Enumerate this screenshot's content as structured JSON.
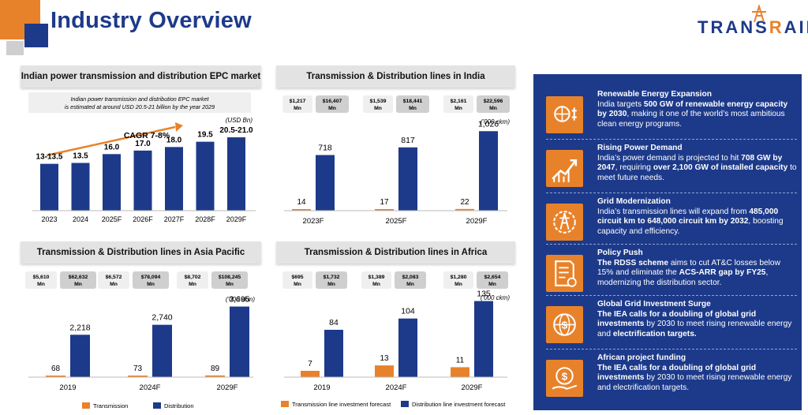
{
  "page": {
    "title": "Industry Overview",
    "logo": "TRANSRAIL"
  },
  "colors": {
    "blue": "#1d3a8a",
    "orange": "#e8822a",
    "gray": "#e3e3e3"
  },
  "epc": {
    "title": "Indian power transmission and distribution EPC market",
    "note_line1": "Indian power transmission and distribution EPC market",
    "note_line2": "is estimated at around USD 20.5-21 billion by the year 2029",
    "unit": "(USD Bn)",
    "cagr": "CAGR 7-8%"
  },
  "india": {
    "title": "Transmission & Distribution lines in India",
    "unit": "('000 ckm)"
  },
  "asia": {
    "title": "Transmission & Distribution lines in Asia Pacific",
    "unit": "('000 ckm)",
    "legend_t": "Transmission",
    "legend_d": "Distribution"
  },
  "africa": {
    "title": "Transmission & Distribution lines in Africa",
    "unit": "('000 ckm)",
    "legend_t": "Transmission line investment forecast",
    "legend_d": "Distribution line investment forecast"
  },
  "chart_data": [
    {
      "type": "bar",
      "title": "Indian power transmission and distribution EPC market",
      "categories": [
        "2023",
        "2024",
        "2025F",
        "2026F",
        "2027F",
        "2028F",
        "2029F"
      ],
      "values": [
        13.25,
        13.5,
        16.0,
        17.0,
        18.0,
        19.5,
        20.75
      ],
      "labels": [
        "13-13.5",
        "13.5",
        "16.0",
        "17.0",
        "18.0",
        "19.5",
        "20.5-21.0"
      ],
      "ylabel": "(USD Bn)",
      "annotation": "CAGR 7-8%",
      "ylim": [
        0,
        24
      ]
    },
    {
      "type": "bar",
      "title": "Transmission & Distribution lines in India",
      "categories": [
        "2023F",
        "2025F",
        "2029F"
      ],
      "series": [
        {
          "values": [
            14,
            17,
            22
          ]
        },
        {
          "values": [
            718,
            817,
            1026
          ]
        }
      ],
      "labels_t": [
        "14",
        "17",
        "22"
      ],
      "labels_d": [
        "718",
        "817",
        "1,026"
      ],
      "badges": [
        [
          "$1,217 Mn",
          "$16,407 Mn"
        ],
        [
          "$1,539 Mn",
          "$18,441 Mn"
        ],
        [
          "$2,161 Mn",
          "$22,596 Mn"
        ]
      ],
      "ylim": [
        0,
        1100
      ]
    },
    {
      "type": "bar",
      "title": "Transmission & Distribution lines in Asia Pacific",
      "categories": [
        "2019",
        "2024F",
        "2029F"
      ],
      "series": [
        {
          "name": "Transmission",
          "values": [
            68,
            73,
            89
          ]
        },
        {
          "name": "Distribution",
          "values": [
            2218,
            2740,
            3695
          ]
        }
      ],
      "labels_t": [
        "68",
        "73",
        "89"
      ],
      "labels_d": [
        "2,218",
        "2,740",
        "3,695"
      ],
      "badges": [
        [
          "$5,610 Mn",
          "$62,632 Mn"
        ],
        [
          "$6,572 Mn",
          "$78,094 Mn"
        ],
        [
          "$8,702 Mn",
          "$108,245 Mn"
        ]
      ],
      "ylim": [
        0,
        3800
      ]
    },
    {
      "type": "bar",
      "title": "Transmission & Distribution lines in Africa",
      "categories": [
        "2019",
        "2024F",
        "2029F"
      ],
      "series": [
        {
          "name": "Transmission line investment forecast",
          "values": [
            7,
            13,
            11
          ]
        },
        {
          "name": "Distribution line investment forecast",
          "values": [
            84,
            104,
            135
          ]
        }
      ],
      "labels_t": [
        "7",
        "13",
        "11"
      ],
      "labels_d": [
        "84",
        "104",
        "135"
      ],
      "badges": [
        [
          "$695 Mn",
          "$1,732 Mn"
        ],
        [
          "$1,389 Mn",
          "$2,083 Mn"
        ],
        [
          "$1,280 Mn",
          "$2,654 Mn"
        ]
      ],
      "ylim": [
        0,
        140
      ]
    }
  ],
  "items": [
    {
      "icon": "renewable-energy-icon",
      "head": "Renewable Energy Expansion",
      "parts": [
        {
          "t": "India targets "
        },
        {
          "t": "500 GW of renewable energy capacity by 2030",
          "b": true
        },
        {
          "t": ", making it one of the world’s most ambitious clean energy programs."
        }
      ]
    },
    {
      "icon": "rising-demand-icon",
      "head": "Rising Power Demand",
      "parts": [
        {
          "t": "India’s power demand is projected to hit "
        },
        {
          "t": "708 GW by 2047",
          "b": true
        },
        {
          "t": ", requiring "
        },
        {
          "t": "over 2,100 GW of installed capacity",
          "b": true
        },
        {
          "t": " to meet future needs."
        }
      ]
    },
    {
      "icon": "grid-modernization-icon",
      "head": "Grid Modernization",
      "parts": [
        {
          "t": "India’s transmission lines will expand from "
        },
        {
          "t": "485,000 circuit km to 648,000 circuit km by 2032",
          "b": true
        },
        {
          "t": ", boosting capacity and efficiency."
        }
      ]
    },
    {
      "icon": "policy-document-icon",
      "head": "Policy Push",
      "parts": [
        {
          "t": "The RDSS scheme",
          "b": true
        },
        {
          "t": " aims to cut AT&C losses below 15% and eliminate the "
        },
        {
          "t": "ACS-ARR gap by FY25",
          "b": true
        },
        {
          "t": ", modernizing the distribution sector."
        }
      ]
    },
    {
      "icon": "global-investment-icon",
      "head": "Global Grid Investment Surge",
      "parts": [
        {
          "t": "The IEA calls for a doubling of global grid investments",
          "b": true
        },
        {
          "t": " by 2030 to meet rising renewable energy and "
        },
        {
          "t": "electrification targets.",
          "b": true
        }
      ]
    },
    {
      "icon": "project-funding-icon",
      "head": "African project funding",
      "parts": [
        {
          "t": "The IEA calls for a doubling of global grid investments",
          "b": true
        },
        {
          "t": " by 2030 to meet rising renewable energy and electrification targets."
        }
      ]
    }
  ]
}
